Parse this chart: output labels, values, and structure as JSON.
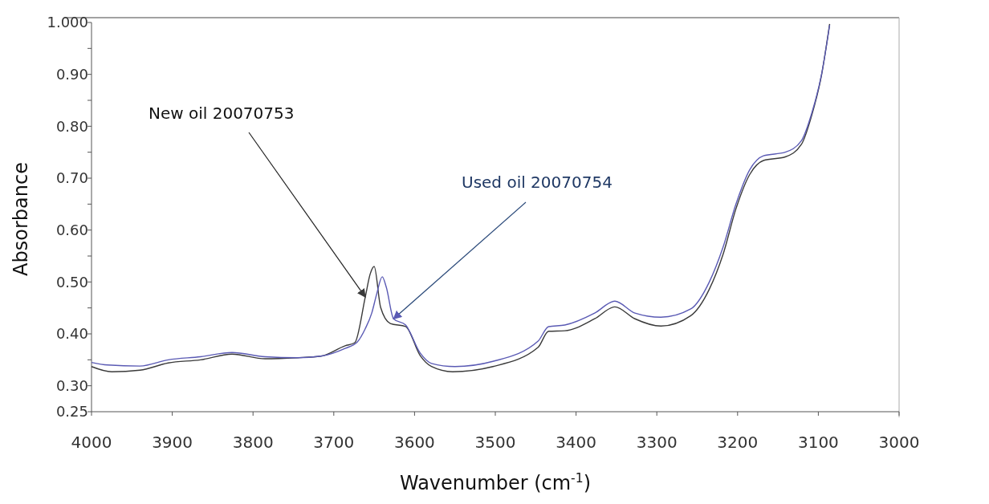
{
  "chart_data": {
    "type": "line",
    "xlabel": "Wavenumber (cm$^{-1}$)",
    "ylabel": "Absorbance",
    "xlim": [
      4000,
      3000
    ],
    "xticks": [
      4000,
      3900,
      3800,
      3700,
      3600,
      3500,
      3400,
      3300,
      3200,
      3100,
      3000
    ],
    "ylim": [
      0.25,
      1.0
    ],
    "yticks": [
      0.25,
      {
        "value": 0.3,
        "label": "0.30"
      },
      {
        "value": 0.35,
        "label": null
      },
      {
        "value": 0.4,
        "label": "0.40"
      },
      {
        "value": 0.45,
        "label": null
      },
      {
        "value": 0.5,
        "label": "0.50"
      },
      {
        "value": 0.55,
        "label": null
      },
      {
        "value": 0.6,
        "label": "0.60"
      },
      {
        "value": 0.65,
        "label": null
      },
      {
        "value": 0.7,
        "label": "0.70"
      },
      {
        "value": 0.75,
        "label": null
      },
      {
        "value": 0.8,
        "label": "0.80"
      },
      {
        "value": 0.85,
        "label": null
      },
      {
        "value": 0.9,
        "label": "0.90"
      },
      {
        "value": 0.95,
        "label": null
      },
      {
        "value": 1.0,
        "label": "1.000"
      }
    ],
    "grid": false,
    "line_style": "solid",
    "series": [
      {
        "color": "#3a3a3a",
        "x": [
          4000,
          3975,
          3940,
          3905,
          3865,
          3826,
          3785,
          3745,
          3716,
          3686,
          3674,
          3661,
          3655,
          3650,
          3642,
          3630,
          3611,
          3593,
          3579,
          3553,
          3503,
          3447,
          3434,
          3414,
          3377,
          3352,
          3327,
          3295,
          3258,
          3235,
          3218,
          3202,
          3185,
          3168,
          3141,
          3121,
          3108,
          3096,
          3086
        ],
        "values": [
          0.337,
          0.327,
          0.33,
          0.344,
          0.35,
          0.361,
          0.352,
          0.354,
          0.357,
          0.377,
          0.383,
          0.471,
          0.515,
          0.53,
          0.451,
          0.42,
          0.414,
          0.358,
          0.337,
          0.327,
          0.337,
          0.374,
          0.405,
          0.406,
          0.429,
          0.452,
          0.429,
          0.415,
          0.435,
          0.486,
          0.553,
          0.641,
          0.707,
          0.734,
          0.741,
          0.765,
          0.822,
          0.899,
          0.997
        ]
      },
      {
        "color": "#5a5ab4",
        "x": [
          4000,
          3980,
          3940,
          3905,
          3865,
          3826,
          3785,
          3745,
          3716,
          3686,
          3671,
          3661,
          3653,
          3647,
          3640,
          3635,
          3626,
          3611,
          3593,
          3579,
          3550,
          3503,
          3447,
          3434,
          3414,
          3377,
          3352,
          3327,
          3295,
          3258,
          3235,
          3218,
          3202,
          3185,
          3168,
          3141,
          3121,
          3108,
          3096,
          3086
        ],
        "values": [
          0.345,
          0.34,
          0.338,
          0.35,
          0.356,
          0.364,
          0.356,
          0.354,
          0.357,
          0.372,
          0.384,
          0.41,
          0.44,
          0.476,
          0.51,
          0.49,
          0.429,
          0.417,
          0.363,
          0.343,
          0.337,
          0.347,
          0.386,
          0.414,
          0.417,
          0.44,
          0.463,
          0.44,
          0.432,
          0.448,
          0.5,
          0.567,
          0.65,
          0.716,
          0.743,
          0.75,
          0.772,
          0.826,
          0.9,
          0.995
        ]
      }
    ],
    "annotations": [
      {
        "text": "New oil 20070753",
        "x": 3661,
        "y": 0.471
      },
      {
        "text": "Used oil 20070754",
        "x": 3626,
        "y": 0.429
      }
    ]
  }
}
